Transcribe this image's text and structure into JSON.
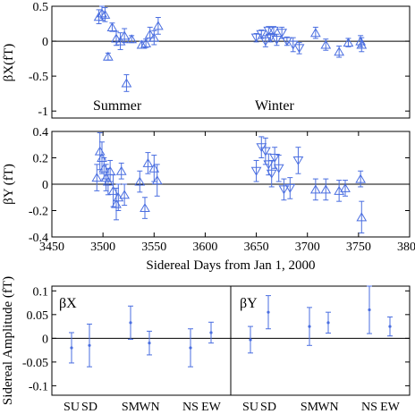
{
  "colors": {
    "data": "#4a6ee0",
    "axis": "#000000",
    "background": "#ffffff"
  },
  "chart_data": [
    {
      "type": "scatter",
      "ylabel": "βX(fT)",
      "ylim": [
        -1.1,
        0.5
      ],
      "xlim": [
        3450,
        3800
      ],
      "yticks": [
        0.5,
        0,
        -0.5,
        -1
      ],
      "ytick_labels": [
        "0.5",
        "0",
        "-0.5",
        "-1"
      ],
      "annotations": [
        "Summer",
        "Winter"
      ],
      "zero_line": true,
      "series": [
        {
          "marker": "triangle-up",
          "points": [
            {
              "x": 3496,
              "y": 0.35,
              "err": 0.1
            },
            {
              "x": 3499,
              "y": 0.4,
              "err": 0.1
            },
            {
              "x": 3502,
              "y": 0.38,
              "err": 0.1
            },
            {
              "x": 3505,
              "y": -0.22,
              "err": 0.05
            },
            {
              "x": 3509,
              "y": 0.2,
              "err": 0.06
            },
            {
              "x": 3513,
              "y": 0.04,
              "err": 0.1
            },
            {
              "x": 3517,
              "y": 0.0,
              "err": 0.12
            },
            {
              "x": 3521,
              "y": 0.08,
              "err": 0.1
            },
            {
              "x": 3523,
              "y": -0.6,
              "err": 0.12
            },
            {
              "x": 3528,
              "y": 0.03,
              "err": 0.05
            },
            {
              "x": 3538,
              "y": -0.05,
              "err": 0.05
            },
            {
              "x": 3542,
              "y": -0.03,
              "err": 0.06
            },
            {
              "x": 3546,
              "y": 0.1,
              "err": 0.1
            },
            {
              "x": 3550,
              "y": 0.05,
              "err": 0.1
            },
            {
              "x": 3554,
              "y": 0.22,
              "err": 0.12
            },
            {
              "x": 3708,
              "y": 0.12,
              "err": 0.08
            },
            {
              "x": 3718,
              "y": -0.05,
              "err": 0.08
            },
            {
              "x": 3731,
              "y": -0.15,
              "err": 0.08
            },
            {
              "x": 3740,
              "y": -0.02,
              "err": 0.06
            },
            {
              "x": 3752,
              "y": 0.0,
              "err": 0.08
            },
            {
              "x": 3753,
              "y": -0.05,
              "err": 0.1
            }
          ]
        },
        {
          "marker": "triangle-down",
          "points": [
            {
              "x": 3650,
              "y": 0.05,
              "err": 0.06
            },
            {
              "x": 3655,
              "y": 0.1,
              "err": 0.06
            },
            {
              "x": 3659,
              "y": 0.0,
              "err": 0.08
            },
            {
              "x": 3662,
              "y": 0.15,
              "err": 0.06
            },
            {
              "x": 3664,
              "y": 0.05,
              "err": 0.06
            },
            {
              "x": 3667,
              "y": 0.15,
              "err": 0.06
            },
            {
              "x": 3670,
              "y": 0.02,
              "err": 0.08
            },
            {
              "x": 3675,
              "y": 0.12,
              "err": 0.08
            },
            {
              "x": 3680,
              "y": 0.0,
              "err": 0.06
            },
            {
              "x": 3686,
              "y": -0.05,
              "err": 0.1
            },
            {
              "x": 3692,
              "y": -0.1,
              "err": 0.08
            }
          ]
        }
      ]
    },
    {
      "type": "scatter",
      "ylabel": "βY (fT)",
      "xlabel": "Sidereal Days from Jan 1, 2000",
      "ylim": [
        -0.4,
        0.4
      ],
      "xlim": [
        3450,
        3800
      ],
      "xticks": [
        3450,
        3500,
        3550,
        3600,
        3650,
        3700,
        3750,
        3800
      ],
      "xtick_labels": [
        "3450",
        "3500",
        "3550",
        "3600",
        "3650",
        "3700",
        "3750",
        "3800"
      ],
      "yticks": [
        0.4,
        0.2,
        0,
        -0.2,
        -0.4
      ],
      "ytick_labels": [
        "0.4",
        "0.2",
        "0",
        "-0.2",
        "-0.4"
      ],
      "zero_line": true,
      "series": [
        {
          "marker": "triangle-up",
          "points": [
            {
              "x": 3494,
              "y": 0.05,
              "err": 0.1
            },
            {
              "x": 3497,
              "y": 0.25,
              "err": 0.14
            },
            {
              "x": 3499,
              "y": 0.2,
              "err": 0.12
            },
            {
              "x": 3501,
              "y": 0.12,
              "err": 0.08
            },
            {
              "x": 3503,
              "y": 0.05,
              "err": 0.1
            },
            {
              "x": 3505,
              "y": 0.02,
              "err": 0.1
            },
            {
              "x": 3507,
              "y": 0.1,
              "err": 0.08
            },
            {
              "x": 3510,
              "y": -0.05,
              "err": 0.12
            },
            {
              "x": 3513,
              "y": -0.15,
              "err": 0.12
            },
            {
              "x": 3515,
              "y": -0.1,
              "err": 0.1
            },
            {
              "x": 3518,
              "y": 0.1,
              "err": 0.06
            },
            {
              "x": 3521,
              "y": -0.08,
              "err": 0.08
            },
            {
              "x": 3536,
              "y": 0.02,
              "err": 0.08
            },
            {
              "x": 3541,
              "y": -0.18,
              "err": 0.08
            },
            {
              "x": 3544,
              "y": 0.16,
              "err": 0.08
            },
            {
              "x": 3550,
              "y": 0.12,
              "err": 0.1
            },
            {
              "x": 3553,
              "y": 0.03,
              "err": 0.12
            },
            {
              "x": 3708,
              "y": -0.04,
              "err": 0.08
            },
            {
              "x": 3718,
              "y": -0.04,
              "err": 0.08
            },
            {
              "x": 3731,
              "y": -0.05,
              "err": 0.08
            },
            {
              "x": 3737,
              "y": -0.03,
              "err": 0.06
            },
            {
              "x": 3752,
              "y": 0.04,
              "err": 0.06
            },
            {
              "x": 3753,
              "y": -0.25,
              "err": 0.12
            }
          ]
        },
        {
          "marker": "triangle-down",
          "points": [
            {
              "x": 3650,
              "y": 0.1,
              "err": 0.08
            },
            {
              "x": 3655,
              "y": 0.28,
              "err": 0.08
            },
            {
              "x": 3659,
              "y": 0.25,
              "err": 0.1
            },
            {
              "x": 3662,
              "y": 0.15,
              "err": 0.08
            },
            {
              "x": 3665,
              "y": 0.08,
              "err": 0.1
            },
            {
              "x": 3668,
              "y": 0.2,
              "err": 0.08
            },
            {
              "x": 3672,
              "y": 0.12,
              "err": 0.1
            },
            {
              "x": 3677,
              "y": -0.04,
              "err": 0.08
            },
            {
              "x": 3683,
              "y": -0.03,
              "err": 0.08
            },
            {
              "x": 3691,
              "y": 0.18,
              "err": 0.1
            }
          ]
        }
      ]
    },
    {
      "type": "scatter",
      "ylabel": "Sidereal Amplitude (fT)",
      "ylim": [
        -0.12,
        0.11
      ],
      "yticks": [
        0.1,
        0.05,
        0,
        -0.05,
        -0.1
      ],
      "ytick_labels": [
        "0.1",
        "0.05",
        "0",
        "-0.05",
        "-0.1"
      ],
      "categories": [
        "SU",
        "SD",
        "SM",
        "WN",
        "NS",
        "EW"
      ],
      "annotations": [
        "βX",
        "βY"
      ],
      "zero_line": true,
      "groups": [
        {
          "name": "βX",
          "points": [
            {
              "category": "SU",
              "value": -0.02,
              "err": 0.032
            },
            {
              "category": "SD",
              "value": -0.015,
              "err": 0.045
            },
            {
              "category": "SM",
              "value": 0.033,
              "err": 0.035
            },
            {
              "category": "WN",
              "value": -0.01,
              "err": 0.025
            },
            {
              "category": "NS",
              "value": -0.02,
              "err": 0.04
            },
            {
              "category": "EW",
              "value": 0.012,
              "err": 0.022
            }
          ]
        },
        {
          "name": "βY",
          "points": [
            {
              "category": "SU",
              "value": -0.003,
              "err": 0.028
            },
            {
              "category": "SD",
              "value": 0.055,
              "err": 0.035
            },
            {
              "category": "SM",
              "value": 0.025,
              "err": 0.04
            },
            {
              "category": "WN",
              "value": 0.033,
              "err": 0.022
            },
            {
              "category": "NS",
              "value": 0.06,
              "err": 0.05
            },
            {
              "category": "EW",
              "value": 0.025,
              "err": 0.02
            }
          ]
        }
      ]
    }
  ]
}
